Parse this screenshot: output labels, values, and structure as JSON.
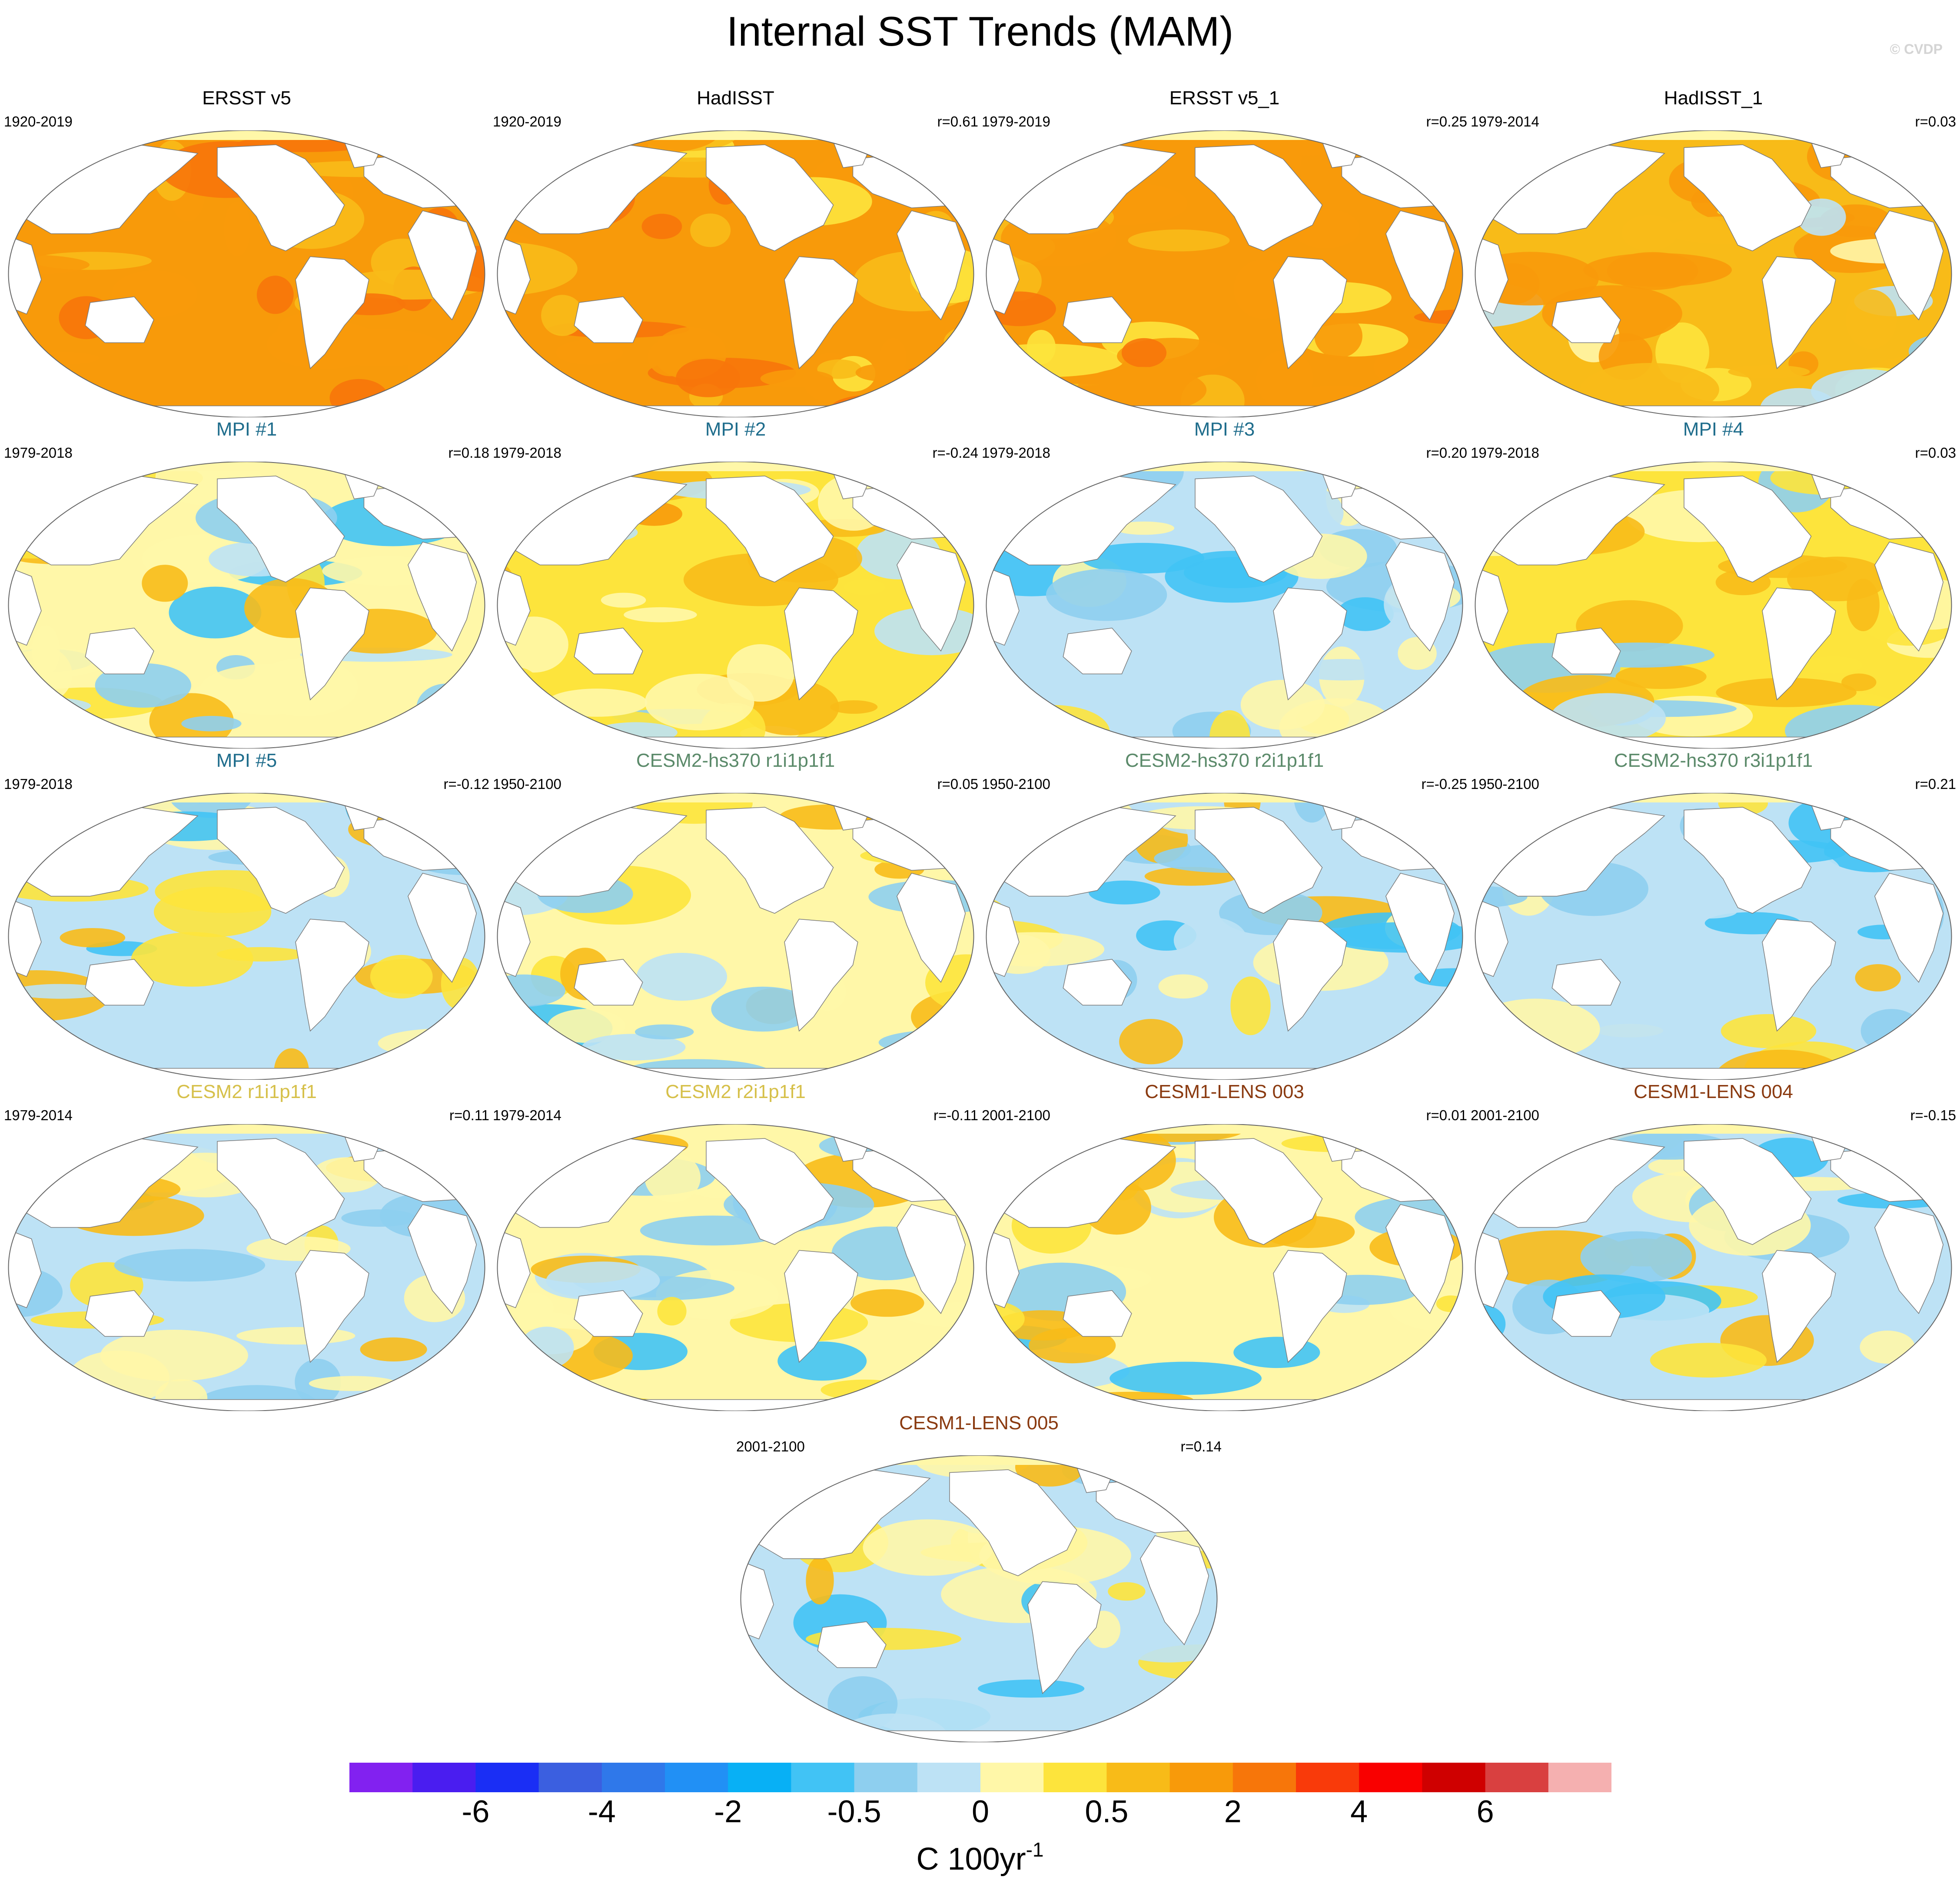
{
  "figure": {
    "title": "Internal SST Trends (MAM)",
    "copyright": "© CVDP",
    "units_main": "C 100yr",
    "units_exp": "-1"
  },
  "palette": {
    "ocean_base": "#fff7a8",
    "land": "#ffffff",
    "title_observed": "#000000",
    "title_mpi": "#1f6d8c",
    "title_cesm2_hs370": "#5b8a6a",
    "title_cesm2": "#d6c04a",
    "title_cesm1": "#8a3a10"
  },
  "colorbar": {
    "colors": [
      "#8221f0",
      "#4a1df0",
      "#1a2ef5",
      "#3b5fe0",
      "#2f78ea",
      "#2190f5",
      "#08b0f5",
      "#41c3f5",
      "#8ecfef",
      "#bde2f5",
      "#fff7a8",
      "#fde43c",
      "#f8bb18",
      "#f89a0a",
      "#f7760a",
      "#f93a0a",
      "#f90000",
      "#cf0000",
      "#d94040",
      "#f5b0b0"
    ],
    "tick_labels": [
      "-6",
      "-4",
      "-2",
      "-0.5",
      "0",
      "0.5",
      "2",
      "4",
      "6"
    ]
  },
  "chart_data": {
    "type": "heatmap",
    "title": "Internal SST Trends (MAM)",
    "units": "C 100yr^-1",
    "colorbar_levels": [
      -8,
      -6,
      -5,
      -4,
      -3,
      -2,
      -1,
      -0.5,
      -0.25,
      0,
      0.25,
      0.5,
      1,
      2,
      3,
      4,
      5,
      6,
      8
    ],
    "colorbar_tick_labels": [
      "-6",
      "-4",
      "-2",
      "-0.5",
      "0",
      "0.5",
      "2",
      "4",
      "6"
    ],
    "panels": [
      {
        "name": "ERSST v5",
        "years": "1920-2019",
        "r": "",
        "group": "observed",
        "mean_trend": 1.5
      },
      {
        "name": "HadISST",
        "years": "1920-2019",
        "r": "r=0.61",
        "group": "observed",
        "mean_trend": 1.3
      },
      {
        "name": "ERSST v5_1",
        "years": "1979-2019",
        "r": "r=0.25",
        "group": "observed",
        "mean_trend": 1.2
      },
      {
        "name": "HadISST_1",
        "years": "1979-2014",
        "r": "r=0.03",
        "group": "observed",
        "mean_trend": 0.8
      },
      {
        "name": "MPI #1",
        "years": "1979-2018",
        "r": "r=0.18",
        "group": "mpi",
        "mean_trend": 0.1
      },
      {
        "name": "MPI #2",
        "years": "1979-2018",
        "r": "r=-0.24",
        "group": "mpi",
        "mean_trend": 0.4
      },
      {
        "name": "MPI #3",
        "years": "1979-2018",
        "r": "r=0.20",
        "group": "mpi",
        "mean_trend": -0.2
      },
      {
        "name": "MPI #4",
        "years": "1979-2018",
        "r": "r=0.03",
        "group": "mpi",
        "mean_trend": 0.3
      },
      {
        "name": "MPI #5",
        "years": "1979-2018",
        "r": "r=-0.12",
        "group": "mpi",
        "mean_trend": 0.0
      },
      {
        "name": "CESM2-hs370 r1i1p1f1",
        "years": "1950-2100",
        "r": "r=0.05",
        "group": "cesm2_hs370",
        "mean_trend": 0.1
      },
      {
        "name": "CESM2-hs370 r2i1p1f1",
        "years": "1950-2100",
        "r": "r=-0.25",
        "group": "cesm2_hs370",
        "mean_trend": 0.0
      },
      {
        "name": "CESM2-hs370 r3i1p1f1",
        "years": "1950-2100",
        "r": "r=0.21",
        "group": "cesm2_hs370",
        "mean_trend": -0.05
      },
      {
        "name": "CESM2 r1i1p1f1",
        "years": "1979-2014",
        "r": "r=0.11",
        "group": "cesm2",
        "mean_trend": 0.0
      },
      {
        "name": "CESM2 r2i1p1f1",
        "years": "1979-2014",
        "r": "r=-0.11",
        "group": "cesm2",
        "mean_trend": 0.1
      },
      {
        "name": "CESM1-LENS 003",
        "years": "2001-2100",
        "r": "r=0.01",
        "group": "cesm1",
        "mean_trend": 0.05
      },
      {
        "name": "CESM1-LENS 004",
        "years": "2001-2100",
        "r": "r=-0.15",
        "group": "cesm1",
        "mean_trend": 0.0
      },
      {
        "name": "CESM1-LENS 005",
        "years": "2001-2100",
        "r": "r=0.14",
        "group": "cesm1",
        "mean_trend": 0.0
      }
    ]
  }
}
